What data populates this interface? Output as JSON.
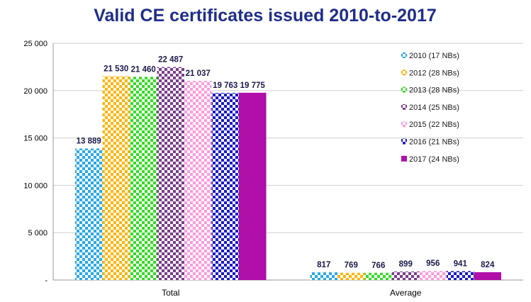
{
  "chart_data": {
    "type": "bar",
    "title": "Valid CE certificates issued 2010-to-2017",
    "xlabel": "",
    "ylabel": "",
    "categories": [
      "Total",
      "Average"
    ],
    "ylim": [
      0,
      25000
    ],
    "yticks": [
      {
        "value": 0,
        "label": "-"
      },
      {
        "value": 5000,
        "label": "5 000"
      },
      {
        "value": 10000,
        "label": "10 000"
      },
      {
        "value": 15000,
        "label": "15 000"
      },
      {
        "value": 20000,
        "label": "20 000"
      },
      {
        "value": 25000,
        "label": "25 000"
      }
    ],
    "grid": true,
    "legend_position": "right",
    "series": [
      {
        "name": "2010 (17 NBs)",
        "values": [
          13889,
          817
        ],
        "labels": [
          "13 889",
          "817"
        ],
        "color": "#29a9e6",
        "pattern": "checker"
      },
      {
        "name": "2012 (28 NBs)",
        "values": [
          21530,
          769
        ],
        "labels": [
          "21 530",
          "769"
        ],
        "color": "#ffb300",
        "pattern": "checker"
      },
      {
        "name": "2013 (28 NBs)",
        "values": [
          21460,
          766
        ],
        "labels": [
          "21 460",
          "766"
        ],
        "color": "#33dd22",
        "pattern": "checker"
      },
      {
        "name": "2014 (25 NBs)",
        "values": [
          22487,
          899
        ],
        "labels": [
          "22 487",
          "899"
        ],
        "color": "#7a3c8c",
        "pattern": "checker"
      },
      {
        "name": "2015 (22 NBs)",
        "values": [
          21037,
          956
        ],
        "labels": [
          "21 037",
          "956"
        ],
        "color": "#ff99dd",
        "pattern": "checker"
      },
      {
        "name": "2016 (21 NBs)",
        "values": [
          19763,
          941
        ],
        "labels": [
          "19 763",
          "941"
        ],
        "color": "#1a1acc",
        "pattern": "checker"
      },
      {
        "name": "2017 (24 NBs)",
        "values": [
          19775,
          824
        ],
        "labels": [
          "19 775",
          "824"
        ],
        "color": "#b00fa8",
        "pattern": "solid"
      }
    ]
  }
}
